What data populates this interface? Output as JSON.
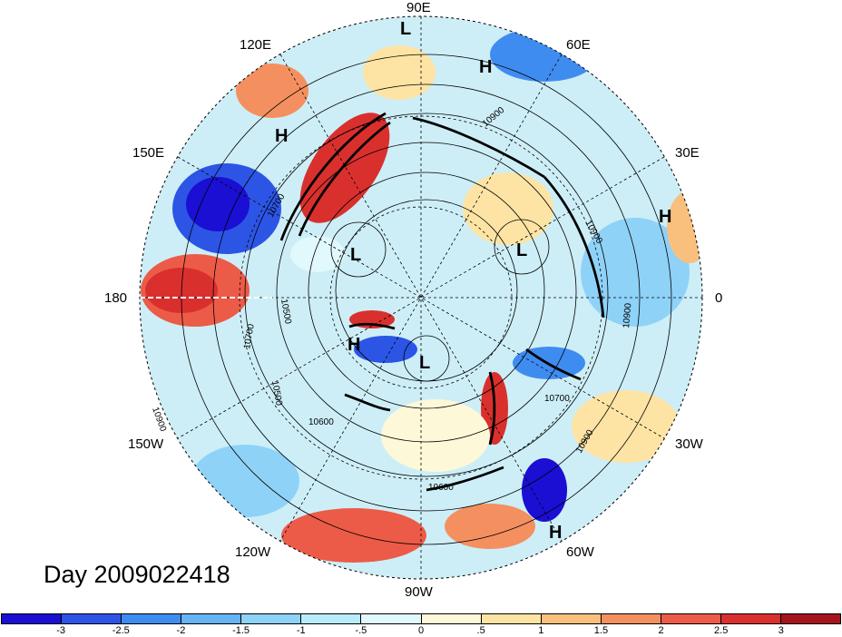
{
  "title": "Day 2009022418",
  "longitude_labels": {
    "lon_90e": "90E",
    "lon_120e": "120E",
    "lon_60e": "60E",
    "lon_150e": "150E",
    "lon_30e": "30E",
    "lon_180": "180",
    "lon_0": "0",
    "lon_150w": "150W",
    "lon_30w": "30W",
    "lon_120w": "120W",
    "lon_60w": "60W",
    "lon_90w": "90W"
  },
  "pressure_centers": [
    {
      "label": "L"
    },
    {
      "label": "H"
    },
    {
      "label": "H"
    },
    {
      "label": "H"
    },
    {
      "label": "L"
    },
    {
      "label": "L"
    },
    {
      "label": "H"
    },
    {
      "label": "L"
    },
    {
      "label": "H"
    }
  ],
  "contour_labels": [
    "10900",
    "10700",
    "10500",
    "10700",
    "10900",
    "10500",
    "10600",
    "10600",
    "10700",
    "10900",
    "10900",
    "10900"
  ],
  "colorbar": {
    "colors": [
      "#1a0fd2",
      "#2c55e6",
      "#3f8cf0",
      "#66b4f4",
      "#8fd2f8",
      "#b8ecfc",
      "#e1f8fc",
      "#fdf8d8",
      "#fde4a4",
      "#f9c07d",
      "#f49060",
      "#ec5b48",
      "#d9302e",
      "#a6141d"
    ],
    "ticks": [
      "-3",
      "-2.5",
      "-2",
      "-1.5",
      "-1",
      "-.5",
      "0",
      ".5",
      "1",
      "1.5",
      "2",
      "2.5",
      "3"
    ]
  }
}
